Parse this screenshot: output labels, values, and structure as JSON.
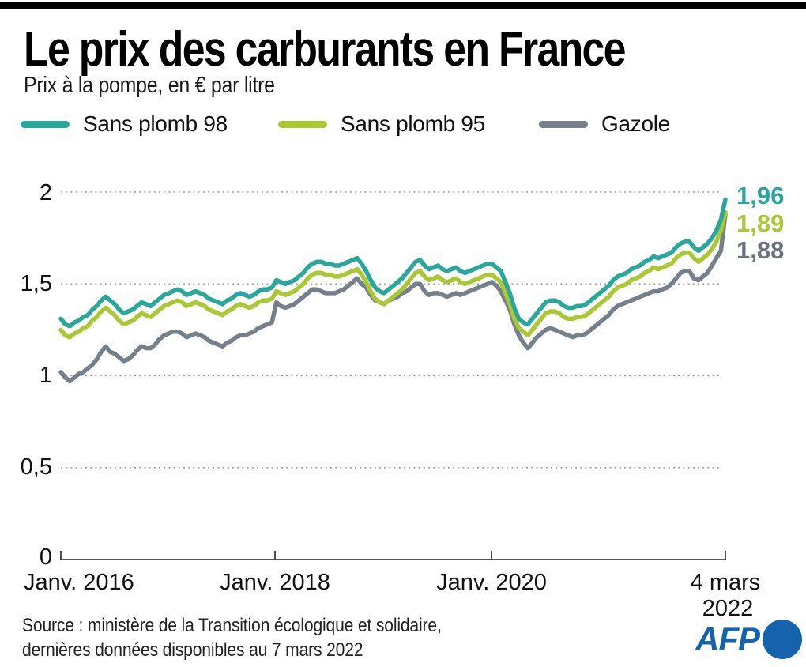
{
  "header": {
    "title": "Le prix des carburants en France",
    "subtitle": "Prix à la pompe, en € par litre"
  },
  "legend": [
    {
      "label": "Sans plomb 98",
      "color": "#2aa79b"
    },
    {
      "label": "Sans plomb 95",
      "color": "#aac734"
    },
    {
      "label": "Gazole",
      "color": "#75808a"
    }
  ],
  "colors": {
    "teal": "#2aa79b",
    "green": "#aac734",
    "gray": "#75808a",
    "afp_blue": "#1562ad",
    "gridline": "#9b9b9b",
    "axis": "#3c3c3c"
  },
  "chart_data": {
    "type": "line",
    "title": "Le prix des carburants en France",
    "subtitle": "Prix à la pompe, en € par litre",
    "ylabel": "€ par litre",
    "ylim": [
      0,
      2
    ],
    "grid": "horizontal-dotted",
    "legend_position": "top",
    "y_axis": {
      "tick_values": [
        2,
        1.5,
        1,
        0.5,
        0
      ],
      "tick_labels": [
        "2",
        "1,5",
        "1",
        "0,5",
        "0"
      ]
    },
    "x_axis": {
      "tick_labels": [
        "Janv. 2016",
        "Janv. 2018",
        "Janv. 2020",
        "4 mars",
        "2022"
      ],
      "range_years": [
        2016.0,
        2022.17
      ],
      "sampling": "environ 2 points par mois, janv. 2016 à févr. 2022, dernier point le 4 mars 2022"
    },
    "end_labels": [
      {
        "text": "1,96",
        "color": "#2aa79b"
      },
      {
        "text": "1,89",
        "color": "#aac734"
      },
      {
        "text": "1,88",
        "color": "#6a737d"
      }
    ],
    "series": [
      {
        "name": "Gazole",
        "color": "#75808a",
        "end_value": 1.88,
        "values": [
          1.02,
          0.99,
          0.97,
          0.99,
          1.01,
          1.02,
          1.04,
          1.06,
          1.09,
          1.13,
          1.16,
          1.13,
          1.12,
          1.1,
          1.08,
          1.09,
          1.11,
          1.14,
          1.16,
          1.15,
          1.15,
          1.17,
          1.2,
          1.22,
          1.23,
          1.24,
          1.24,
          1.23,
          1.21,
          1.22,
          1.23,
          1.22,
          1.21,
          1.19,
          1.18,
          1.17,
          1.16,
          1.18,
          1.19,
          1.21,
          1.22,
          1.22,
          1.23,
          1.24,
          1.26,
          1.27,
          1.28,
          1.29,
          1.4,
          1.38,
          1.37,
          1.38,
          1.39,
          1.41,
          1.43,
          1.45,
          1.47,
          1.47,
          1.46,
          1.45,
          1.45,
          1.45,
          1.46,
          1.47,
          1.49,
          1.51,
          1.53,
          1.5,
          1.48,
          1.44,
          1.41,
          1.4,
          1.39,
          1.41,
          1.42,
          1.43,
          1.45,
          1.46,
          1.48,
          1.5,
          1.5,
          1.46,
          1.44,
          1.45,
          1.45,
          1.44,
          1.43,
          1.44,
          1.45,
          1.44,
          1.45,
          1.46,
          1.47,
          1.48,
          1.49,
          1.5,
          1.51,
          1.49,
          1.46,
          1.41,
          1.36,
          1.28,
          1.22,
          1.18,
          1.15,
          1.18,
          1.21,
          1.23,
          1.25,
          1.26,
          1.25,
          1.24,
          1.23,
          1.22,
          1.21,
          1.22,
          1.22,
          1.23,
          1.25,
          1.27,
          1.29,
          1.31,
          1.33,
          1.36,
          1.38,
          1.39,
          1.4,
          1.41,
          1.42,
          1.43,
          1.44,
          1.45,
          1.46,
          1.46,
          1.47,
          1.48,
          1.5,
          1.53,
          1.56,
          1.57,
          1.57,
          1.53,
          1.52,
          1.54,
          1.56,
          1.6,
          1.64,
          1.68,
          1.88
        ]
      },
      {
        "name": "Sans plomb 95",
        "color": "#aac734",
        "end_value": 1.89,
        "values": [
          1.25,
          1.22,
          1.21,
          1.23,
          1.24,
          1.26,
          1.27,
          1.3,
          1.32,
          1.35,
          1.37,
          1.35,
          1.33,
          1.3,
          1.28,
          1.29,
          1.3,
          1.32,
          1.34,
          1.33,
          1.32,
          1.34,
          1.36,
          1.38,
          1.39,
          1.4,
          1.41,
          1.4,
          1.38,
          1.39,
          1.4,
          1.39,
          1.38,
          1.36,
          1.35,
          1.34,
          1.33,
          1.35,
          1.36,
          1.38,
          1.39,
          1.38,
          1.37,
          1.38,
          1.4,
          1.41,
          1.41,
          1.42,
          1.46,
          1.45,
          1.44,
          1.45,
          1.46,
          1.48,
          1.5,
          1.53,
          1.55,
          1.56,
          1.56,
          1.55,
          1.55,
          1.54,
          1.54,
          1.55,
          1.56,
          1.57,
          1.58,
          1.55,
          1.51,
          1.46,
          1.42,
          1.4,
          1.39,
          1.41,
          1.43,
          1.45,
          1.47,
          1.5,
          1.53,
          1.56,
          1.57,
          1.54,
          1.52,
          1.53,
          1.54,
          1.52,
          1.51,
          1.52,
          1.53,
          1.51,
          1.5,
          1.51,
          1.52,
          1.53,
          1.54,
          1.55,
          1.55,
          1.53,
          1.51,
          1.45,
          1.39,
          1.31,
          1.26,
          1.24,
          1.22,
          1.25,
          1.28,
          1.31,
          1.34,
          1.35,
          1.35,
          1.34,
          1.32,
          1.31,
          1.31,
          1.32,
          1.32,
          1.33,
          1.35,
          1.37,
          1.39,
          1.41,
          1.43,
          1.46,
          1.48,
          1.49,
          1.5,
          1.52,
          1.53,
          1.54,
          1.56,
          1.57,
          1.59,
          1.58,
          1.59,
          1.6,
          1.61,
          1.64,
          1.66,
          1.67,
          1.67,
          1.64,
          1.62,
          1.64,
          1.66,
          1.69,
          1.73,
          1.79,
          1.89
        ]
      },
      {
        "name": "Sans plomb 98",
        "color": "#2aa79b",
        "end_value": 1.96,
        "values": [
          1.31,
          1.28,
          1.27,
          1.29,
          1.3,
          1.32,
          1.33,
          1.36,
          1.38,
          1.41,
          1.43,
          1.41,
          1.39,
          1.36,
          1.34,
          1.35,
          1.36,
          1.38,
          1.4,
          1.39,
          1.38,
          1.4,
          1.42,
          1.44,
          1.45,
          1.46,
          1.47,
          1.46,
          1.44,
          1.45,
          1.46,
          1.45,
          1.44,
          1.42,
          1.41,
          1.4,
          1.39,
          1.41,
          1.42,
          1.44,
          1.45,
          1.44,
          1.43,
          1.44,
          1.46,
          1.47,
          1.47,
          1.48,
          1.52,
          1.51,
          1.5,
          1.51,
          1.52,
          1.54,
          1.56,
          1.59,
          1.61,
          1.62,
          1.62,
          1.61,
          1.61,
          1.6,
          1.6,
          1.61,
          1.62,
          1.63,
          1.64,
          1.61,
          1.57,
          1.52,
          1.48,
          1.46,
          1.45,
          1.47,
          1.49,
          1.51,
          1.53,
          1.56,
          1.59,
          1.62,
          1.63,
          1.6,
          1.58,
          1.59,
          1.6,
          1.58,
          1.57,
          1.58,
          1.59,
          1.57,
          1.56,
          1.57,
          1.58,
          1.59,
          1.6,
          1.61,
          1.61,
          1.59,
          1.57,
          1.51,
          1.45,
          1.37,
          1.31,
          1.29,
          1.28,
          1.31,
          1.34,
          1.37,
          1.4,
          1.41,
          1.41,
          1.4,
          1.38,
          1.37,
          1.37,
          1.38,
          1.38,
          1.39,
          1.41,
          1.43,
          1.45,
          1.47,
          1.49,
          1.52,
          1.54,
          1.55,
          1.56,
          1.58,
          1.59,
          1.6,
          1.62,
          1.63,
          1.65,
          1.64,
          1.65,
          1.66,
          1.67,
          1.7,
          1.72,
          1.73,
          1.73,
          1.7,
          1.68,
          1.7,
          1.72,
          1.75,
          1.79,
          1.85,
          1.96
        ]
      }
    ]
  },
  "source": {
    "line1": "Source : ministère de la Transition écologique et solidaire,",
    "line2": "dernières données disponibles au 7 mars 2022"
  },
  "logo": {
    "text": "AFP"
  }
}
